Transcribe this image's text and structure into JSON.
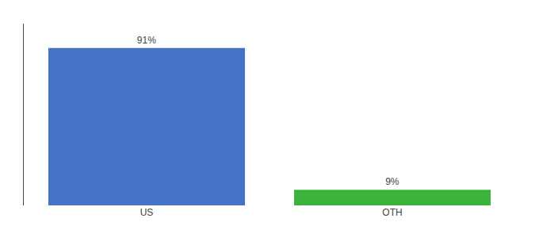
{
  "chart_data": {
    "type": "bar",
    "categories": [
      "US",
      "OTH"
    ],
    "values": [
      91,
      9
    ],
    "value_labels": [
      "91%",
      "9%"
    ],
    "data_labels": true,
    "colors": [
      "#4472c4",
      "#3cb43c"
    ],
    "ylim": [
      0,
      105
    ],
    "tick_labels": "x",
    "grid": false
  }
}
